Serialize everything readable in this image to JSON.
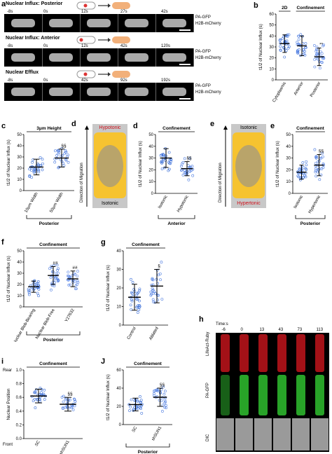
{
  "panel_a": {
    "label": "a",
    "rows": [
      {
        "title": "Nuclear Influx: Posterior",
        "times": [
          "-8s",
          "0s",
          "12s",
          "27s",
          "42s"
        ],
        "channels": [
          "PA-GFP",
          "H2B-mCherry"
        ]
      },
      {
        "title": "Nuclear Influx: Anterior",
        "times": [
          "-8s",
          "0s",
          "12s",
          "42s",
          "120s"
        ],
        "channels": [
          "PA-GFP",
          "H2B-mCherry"
        ]
      },
      {
        "title": "Nuclear Efflux",
        "times": [
          "-8s",
          "0s",
          "42s",
          "92s",
          "192s"
        ],
        "channels": [
          "PA-GFP",
          "H2B-mCherry"
        ]
      }
    ]
  },
  "panel_h": {
    "label": "h",
    "time_label": "Time:s",
    "times": [
      "-6",
      "0",
      "13",
      "43",
      "73",
      "113"
    ],
    "channels": [
      "LifeAct-Ruby",
      "PA-GFP",
      "DIC"
    ]
  },
  "panel_d": {
    "label": "d",
    "top": "Hypotonic",
    "bottom": "Isotonic",
    "axis": "Direction of Migration"
  },
  "panel_e": {
    "label": "e",
    "top": "Isotonic",
    "bottom": "Hypertonic",
    "axis": "Direction of Migration"
  },
  "chart_data": [
    {
      "panel": "b",
      "type": "scatter",
      "ylabel": "t1/2 of Nuclear Influx (s)",
      "ylim": [
        0,
        60
      ],
      "yticks": [
        0,
        10,
        20,
        30,
        40,
        50,
        60
      ],
      "headers": [
        {
          "text": "2D",
          "from": 0,
          "to": 0
        },
        {
          "text": "Confinement",
          "from": 1,
          "to": 2
        }
      ],
      "categories": [
        "Cytoplasmic",
        "Anterior",
        "Posterior"
      ],
      "means": [
        33,
        31,
        21
      ],
      "sd": [
        8,
        9,
        8
      ],
      "sig": [
        "",
        "",
        "**"
      ],
      "bracket": ""
    },
    {
      "panel": "c",
      "type": "scatter",
      "ylabel": "t1/2 of Nuclear Influx (s)",
      "ylim": [
        0,
        50
      ],
      "yticks": [
        0,
        10,
        20,
        30,
        40,
        50
      ],
      "headers": [
        {
          "text": "3μm Height",
          "from": 0,
          "to": 1
        }
      ],
      "categories": [
        "10μm Width",
        "50μm Width"
      ],
      "means": [
        21,
        29
      ],
      "sd": [
        7,
        8
      ],
      "sig": [
        "",
        "§§"
      ],
      "bracket": "Posterior"
    },
    {
      "panel": "d",
      "type": "scatter",
      "ylabel": "t1/2 of Nuclear Influx (s)",
      "ylim": [
        0,
        50
      ],
      "yticks": [
        0,
        10,
        20,
        30,
        40,
        50
      ],
      "headers": [
        {
          "text": "Confinement",
          "from": 0,
          "to": 1
        }
      ],
      "categories": [
        "Isotonic",
        "Hypotonic"
      ],
      "means": [
        30,
        21
      ],
      "sd": [
        8,
        6
      ],
      "sig": [
        "",
        "§§"
      ],
      "bracket": "Anterior"
    },
    {
      "panel": "e",
      "type": "scatter",
      "ylabel": "t1/2 of Nuclear Influx (s)",
      "ylim": [
        0,
        50
      ],
      "yticks": [
        0,
        10,
        20,
        30,
        40,
        50
      ],
      "headers": [
        {
          "text": "Confinement",
          "from": 0,
          "to": 1
        }
      ],
      "categories": [
        "Isotonic",
        "Hypertonic"
      ],
      "means": [
        18,
        24
      ],
      "sd": [
        6,
        9
      ],
      "sig": [
        "",
        "§§"
      ],
      "bracket": "Posterior"
    },
    {
      "panel": "f",
      "type": "scatter",
      "ylabel": "t1/2 of Nuclear Influx (s)",
      "ylim": [
        0,
        50
      ],
      "yticks": [
        0,
        10,
        20,
        30,
        40,
        50
      ],
      "headers": [
        {
          "text": "Confinement",
          "from": 0,
          "to": 2
        }
      ],
      "categories": [
        "Nuclear Bleb-Bearing",
        "Nuclear Bleb-Free",
        "Y27632"
      ],
      "means": [
        18,
        28,
        25
      ],
      "sd": [
        5,
        8,
        7
      ],
      "sig": [
        "",
        "##",
        "##"
      ],
      "bracket": "Posterior"
    },
    {
      "panel": "g",
      "type": "scatter",
      "ylabel": "t1/2 of Nuclear Influx (s)",
      "ylim": [
        0,
        40
      ],
      "yticks": [
        0,
        10,
        20,
        30,
        40
      ],
      "headers": [
        {
          "text": "Confinement",
          "from": 0,
          "to": 1
        }
      ],
      "categories": [
        "Control",
        "Ablated"
      ],
      "means": [
        15,
        21
      ],
      "sd": [
        7,
        9
      ],
      "sig": [
        "",
        "§"
      ],
      "bracket": ""
    },
    {
      "panel": "i",
      "type": "scatter",
      "ylabel": "Nuclear Position",
      "ylim": [
        0,
        1.0
      ],
      "yticks": [
        0.0,
        0.2,
        0.4,
        0.6,
        0.8,
        1.0
      ],
      "yend": [
        "Rear",
        "Front"
      ],
      "headers": [
        {
          "text": "Confinement",
          "from": 0,
          "to": 1
        }
      ],
      "categories": [
        "SC",
        "shSUN1"
      ],
      "means": [
        0.62,
        0.5
      ],
      "sd": [
        0.1,
        0.1
      ],
      "sig": [
        "",
        "§§"
      ],
      "bracket": ""
    },
    {
      "panel": "J",
      "type": "scatter",
      "ylabel": "t1/2 of Nuclear Influx (s)",
      "ylim": [
        0,
        60
      ],
      "yticks": [
        0,
        20,
        40,
        60
      ],
      "headers": [
        {
          "text": "Confinement",
          "from": 0,
          "to": 1
        }
      ],
      "categories": [
        "SC",
        "shSUN1"
      ],
      "means": [
        22,
        30
      ],
      "sd": [
        7,
        10
      ],
      "sig": [
        "",
        "§§"
      ],
      "bracket": "Posterior"
    }
  ]
}
